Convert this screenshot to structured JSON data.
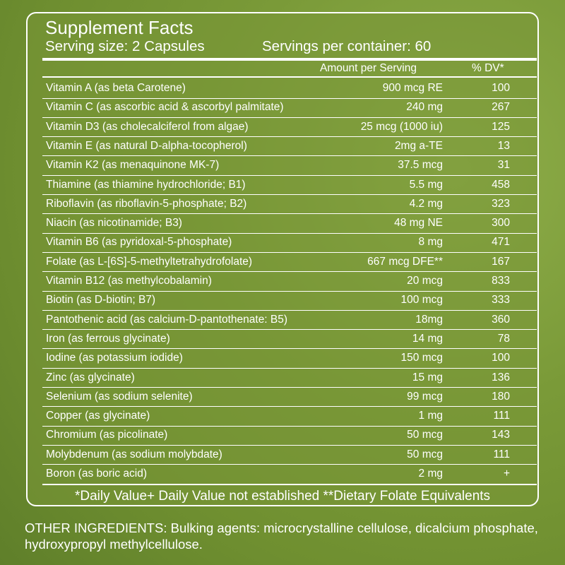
{
  "panel": {
    "title": "Supplement Facts",
    "serving_size": "Serving size: 2 Capsules",
    "servings_per_container": "Servings per container: 60",
    "header": {
      "amount": "Amount per Serving",
      "dv": "% DV*"
    },
    "rows": [
      [
        "Vitamin A (as beta Carotene)",
        "900 mcg RE",
        "100"
      ],
      [
        "Vitamin C (as ascorbic acid & ascorbyl palmitate)",
        "240 mg",
        "267"
      ],
      [
        "Vitamin D3 (as cholecalciferol from algae)",
        "25 mcg (1000 iu)",
        "125"
      ],
      [
        "Vitamin E (as natural D-alpha-tocopherol)",
        "2mg a-TE",
        "13"
      ],
      [
        "Vitamin K2 (as menaquinone MK-7)",
        "37.5 mcg",
        "31"
      ],
      [
        "Thiamine (as thiamine hydrochloride; B1)",
        "5.5 mg",
        "458"
      ],
      [
        "Riboflavin (as riboflavin-5-phosphate; B2)",
        "4.2 mg",
        "323"
      ],
      [
        "Niacin (as nicotinamide; B3)",
        "48 mg NE",
        "300"
      ],
      [
        "Vitamin B6 (as pyridoxal-5-phosphate)",
        "8 mg",
        "471"
      ],
      [
        "Folate (as L-[6S]-5-methyltetrahydrofolate)",
        "667 mcg DFE**",
        "167"
      ],
      [
        "Vitamin B12 (as methylcobalamin)",
        "20 mcg",
        "833"
      ],
      [
        "Biotin (as D-biotin; B7)",
        "100 mcg",
        "333"
      ],
      [
        "Pantothenic acid (as calcium-D-pantothenate: B5)",
        "18mg",
        "360"
      ],
      [
        "Iron (as ferrous glycinate)",
        "14 mg",
        "78"
      ],
      [
        "Iodine (as potassium iodide)",
        "150 mcg",
        "100"
      ],
      [
        "Zinc (as glycinate)",
        "15 mg",
        "136"
      ],
      [
        "Selenium (as sodium selenite)",
        "99 mcg",
        "180"
      ],
      [
        "Copper (as glycinate)",
        "1 mg",
        "111"
      ],
      [
        "Chromium (as picolinate)",
        "50 mcg",
        "143"
      ],
      [
        "Molybdenum (as sodium molybdate)",
        "50 mcg",
        "111"
      ],
      [
        "Boron (as boric acid)",
        "2 mg",
        "+"
      ]
    ],
    "footnote": "*Daily Value+ Daily Value not established **Dietary Folate Equivalents"
  },
  "other_ingredients": "OTHER INGREDIENTS: Bulking agents: microcrystalline cellulose, dicalcium phosphate, hydroxypropyl methylcellulose."
}
